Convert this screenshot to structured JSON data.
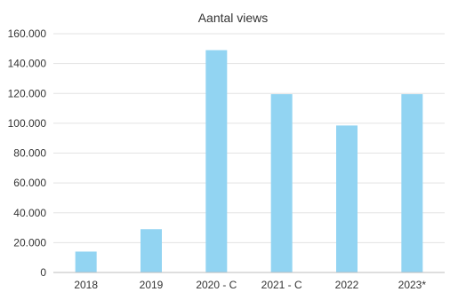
{
  "chart_data": {
    "type": "bar",
    "title": "Aantal views",
    "xlabel": "",
    "ylabel": "",
    "categories": [
      "2018",
      "2019",
      "2020 - C",
      "2021 - C",
      "2022",
      "2023*"
    ],
    "values": [
      14000,
      29000,
      149000,
      119500,
      98500,
      119500
    ],
    "ylim": [
      0,
      160000
    ],
    "yticks": [
      0,
      20000,
      40000,
      60000,
      80000,
      100000,
      120000,
      140000,
      160000
    ],
    "ytick_labels": [
      "0",
      "20.000",
      "40.000",
      "60.000",
      "80.000",
      "100.000",
      "120.000",
      "140.000",
      "160.000"
    ],
    "grid": true,
    "legend": "none",
    "bar_color": "#92d4f2"
  }
}
